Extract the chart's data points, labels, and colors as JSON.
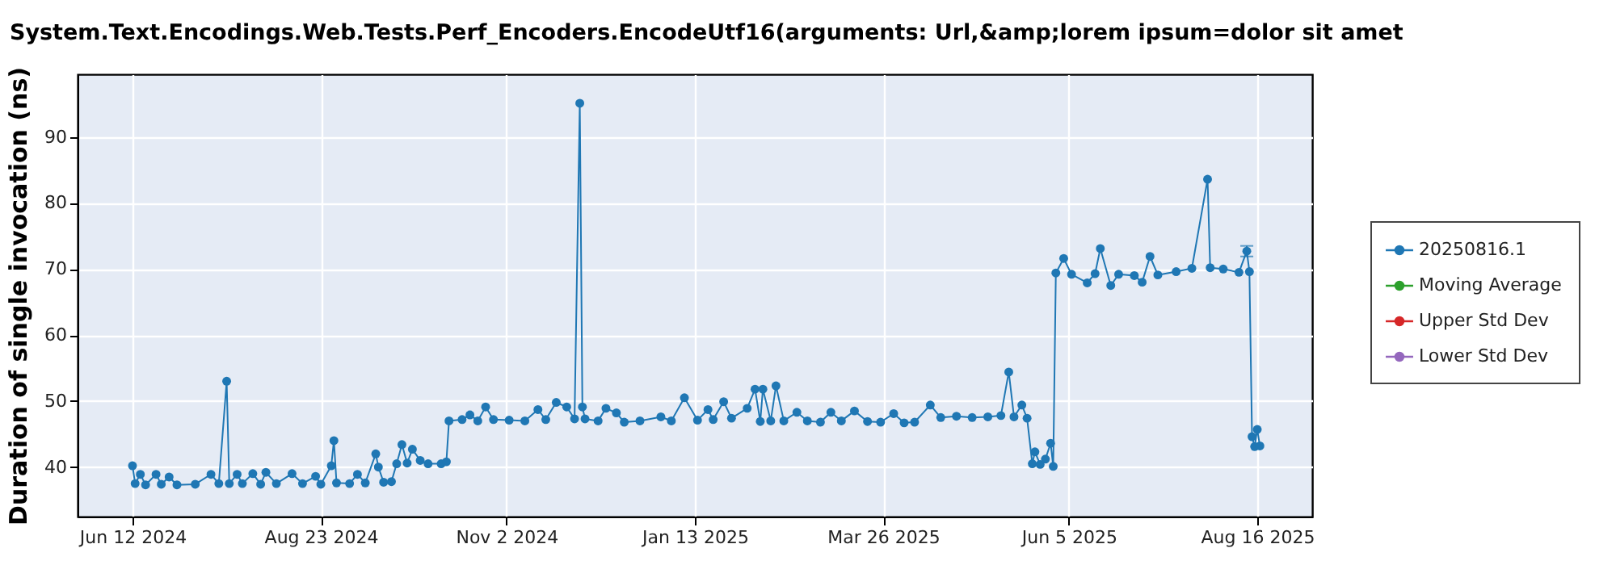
{
  "chart_data": {
    "type": "line",
    "title": "System.Text.Encodings.Web.Tests.Perf_Encoders.EncodeUtf16(arguments: Url,&amp;lorem ipsum=dolor sit amet",
    "ylabel": "Duration of single invocation (ns)",
    "x": [
      "2024-06-12",
      "2024-06-13",
      "2024-06-15",
      "2024-06-17",
      "2024-06-21",
      "2024-06-23",
      "2024-06-26",
      "2024-06-29",
      "2024-07-06",
      "2024-07-12",
      "2024-07-15",
      "2024-07-18",
      "2024-07-19",
      "2024-07-22",
      "2024-07-24",
      "2024-07-28",
      "2024-07-31",
      "2024-08-02",
      "2024-08-06",
      "2024-08-12",
      "2024-08-16",
      "2024-08-21",
      "2024-08-23",
      "2024-08-27",
      "2024-08-28",
      "2024-08-29",
      "2024-09-03",
      "2024-09-06",
      "2024-09-09",
      "2024-09-13",
      "2024-09-14",
      "2024-09-16",
      "2024-09-19",
      "2024-09-21",
      "2024-09-23",
      "2024-09-25",
      "2024-09-27",
      "2024-09-30",
      "2024-10-03",
      "2024-10-08",
      "2024-10-10",
      "2024-10-11",
      "2024-10-16",
      "2024-10-19",
      "2024-10-22",
      "2024-10-25",
      "2024-10-28",
      "2024-11-03",
      "2024-11-09",
      "2024-11-14",
      "2024-11-17",
      "2024-11-21",
      "2024-11-25",
      "2024-11-28",
      "2024-11-30",
      "2024-12-01",
      "2024-12-02",
      "2024-12-07",
      "2024-12-10",
      "2024-12-14",
      "2024-12-17",
      "2024-12-23",
      "2024-12-31",
      "2025-01-04",
      "2025-01-09",
      "2025-01-14",
      "2025-01-18",
      "2025-01-20",
      "2025-01-24",
      "2025-01-27",
      "2025-02-02",
      "2025-02-05",
      "2025-02-07",
      "2025-02-08",
      "2025-02-11",
      "2025-02-13",
      "2025-02-16",
      "2025-02-21",
      "2025-02-25",
      "2025-03-02",
      "2025-03-06",
      "2025-03-10",
      "2025-03-15",
      "2025-03-20",
      "2025-03-25",
      "2025-03-30",
      "2025-04-03",
      "2025-04-07",
      "2025-04-13",
      "2025-04-17",
      "2025-04-23",
      "2025-04-29",
      "2025-05-05",
      "2025-05-10",
      "2025-05-13",
      "2025-05-15",
      "2025-05-18",
      "2025-05-20",
      "2025-05-22",
      "2025-05-23",
      "2025-05-25",
      "2025-05-27",
      "2025-05-29",
      "2025-05-30",
      "2025-05-31",
      "2025-06-03",
      "2025-06-06",
      "2025-06-12",
      "2025-06-15",
      "2025-06-17",
      "2025-06-21",
      "2025-06-24",
      "2025-06-30",
      "2025-07-03",
      "2025-07-06",
      "2025-07-09",
      "2025-07-16",
      "2025-07-22",
      "2025-07-28",
      "2025-07-29",
      "2025-08-03",
      "2025-08-09",
      "2025-08-12",
      "2025-08-13",
      "2025-08-14",
      "2025-08-15",
      "2025-08-16",
      "2025-08-17"
    ],
    "series": [
      {
        "name": "20250816.1",
        "color": "#1f77b4",
        "values": [
          40.2,
          37.5,
          38.9,
          37.3,
          38.9,
          37.4,
          38.5,
          37.3,
          37.4,
          38.9,
          37.5,
          53.0,
          37.5,
          38.9,
          37.5,
          39.0,
          37.4,
          39.2,
          37.5,
          39.0,
          37.5,
          38.6,
          37.4,
          40.2,
          44.0,
          37.6,
          37.5,
          38.9,
          37.6,
          42.0,
          40.0,
          37.7,
          37.8,
          40.5,
          43.4,
          40.6,
          42.7,
          41.0,
          40.5,
          40.5,
          40.8,
          47.0,
          47.2,
          47.9,
          47.0,
          49.1,
          47.2,
          47.1,
          47.0,
          48.7,
          47.2,
          49.8,
          49.1,
          47.3,
          95.1,
          49.1,
          47.3,
          47.0,
          48.9,
          48.2,
          46.8,
          47.0,
          47.6,
          47.0,
          50.5,
          47.1,
          48.7,
          47.2,
          49.9,
          47.4,
          48.9,
          51.8,
          46.9,
          51.8,
          47.0,
          52.3,
          47.0,
          48.3,
          47.0,
          46.8,
          48.3,
          47.0,
          48.5,
          46.9,
          46.8,
          48.1,
          46.7,
          46.8,
          49.4,
          47.5,
          47.7,
          47.5,
          47.6,
          47.8,
          54.4,
          47.6,
          49.4,
          47.4,
          40.5,
          42.3,
          40.4,
          41.2,
          43.6,
          40.1,
          69.4,
          71.6,
          69.2,
          67.9,
          69.3,
          73.1,
          67.5,
          69.2,
          69.0,
          68.0,
          71.9,
          69.1,
          69.6,
          70.1,
          83.6,
          70.2,
          70.0,
          69.5,
          72.7,
          69.6,
          44.6,
          43.1,
          45.7,
          43.2
        ],
        "errors": [
          null,
          null,
          null,
          null,
          null,
          null,
          null,
          null,
          null,
          null,
          null,
          null,
          null,
          null,
          null,
          null,
          null,
          null,
          null,
          null,
          null,
          null,
          null,
          null,
          null,
          null,
          null,
          null,
          null,
          null,
          null,
          null,
          null,
          null,
          null,
          null,
          null,
          null,
          null,
          null,
          null,
          null,
          null,
          null,
          null,
          null,
          null,
          null,
          null,
          null,
          null,
          null,
          null,
          null,
          null,
          null,
          null,
          null,
          null,
          null,
          null,
          null,
          null,
          null,
          null,
          null,
          null,
          null,
          null,
          null,
          null,
          null,
          null,
          null,
          null,
          null,
          null,
          null,
          null,
          null,
          null,
          null,
          null,
          null,
          null,
          null,
          null,
          null,
          null,
          null,
          null,
          null,
          null,
          null,
          null,
          null,
          null,
          null,
          null,
          null,
          null,
          null,
          null,
          null,
          null,
          null,
          null,
          null,
          null,
          null,
          null,
          null,
          null,
          null,
          null,
          null,
          null,
          null,
          null,
          null,
          null,
          null,
          0.8,
          null,
          null,
          null,
          null,
          null
        ]
      },
      {
        "name": "Moving Average",
        "color": "#2ca02c",
        "values": [
          null,
          null,
          null,
          null,
          null,
          null,
          null,
          null,
          null,
          null,
          null,
          null,
          null,
          null,
          null,
          null,
          null,
          null,
          null,
          null,
          null,
          null,
          null,
          null,
          null,
          null,
          null,
          null,
          null,
          null,
          null,
          null,
          null,
          null,
          null,
          null,
          null,
          null,
          null,
          null,
          null,
          null,
          null,
          null,
          null,
          null,
          null,
          null,
          null,
          null,
          null,
          null,
          null,
          null,
          null,
          null,
          null,
          null,
          null,
          null,
          null,
          null,
          null,
          null,
          null,
          null,
          null,
          null,
          null,
          null,
          null,
          null,
          null,
          null,
          null,
          null,
          null,
          null,
          null,
          null,
          null,
          null,
          null,
          null,
          null,
          null,
          null,
          null,
          null,
          null,
          null,
          null,
          null,
          null,
          null,
          null,
          null,
          null,
          null,
          null,
          null,
          null,
          null,
          null,
          null,
          null,
          null,
          null,
          null,
          null,
          null,
          null,
          null,
          null,
          null,
          null,
          null,
          null,
          null,
          null,
          null,
          null,
          null,
          null,
          null,
          null,
          null,
          null
        ]
      },
      {
        "name": "Upper Std Dev",
        "color": "#d62728",
        "values": [
          null,
          null,
          null,
          null,
          null,
          null,
          null,
          null,
          null,
          null,
          null,
          null,
          null,
          null,
          null,
          null,
          null,
          null,
          null,
          null,
          null,
          null,
          null,
          null,
          null,
          null,
          null,
          null,
          null,
          null,
          null,
          null,
          null,
          null,
          null,
          null,
          null,
          null,
          null,
          null,
          null,
          null,
          null,
          null,
          null,
          null,
          null,
          null,
          null,
          null,
          null,
          null,
          null,
          null,
          null,
          null,
          null,
          null,
          null,
          null,
          null,
          null,
          null,
          null,
          null,
          null,
          null,
          null,
          null,
          null,
          null,
          null,
          null,
          null,
          null,
          null,
          null,
          null,
          null,
          null,
          null,
          null,
          null,
          null,
          null,
          null,
          null,
          null,
          null,
          null,
          null,
          null,
          null,
          null,
          null,
          null,
          null,
          null,
          null,
          null,
          null,
          null,
          null,
          null,
          null,
          null,
          null,
          null,
          null,
          null,
          null,
          null,
          null,
          null,
          null,
          null,
          null,
          null,
          null,
          null,
          null,
          null,
          null,
          null,
          null,
          null,
          null,
          null
        ]
      },
      {
        "name": "Lower Std Dev",
        "color": "#9467bd",
        "values": [
          null,
          null,
          null,
          null,
          null,
          null,
          null,
          null,
          null,
          null,
          null,
          null,
          null,
          null,
          null,
          null,
          null,
          null,
          null,
          null,
          null,
          null,
          null,
          null,
          null,
          null,
          null,
          null,
          null,
          null,
          null,
          null,
          null,
          null,
          null,
          null,
          null,
          null,
          null,
          null,
          null,
          null,
          null,
          null,
          null,
          null,
          null,
          null,
          null,
          null,
          null,
          null,
          null,
          null,
          null,
          null,
          null,
          null,
          null,
          null,
          null,
          null,
          null,
          null,
          null,
          null,
          null,
          null,
          null,
          null,
          null,
          null,
          null,
          null,
          null,
          null,
          null,
          null,
          null,
          null,
          null,
          null,
          null,
          null,
          null,
          null,
          null,
          null,
          null,
          null,
          null,
          null,
          null,
          null,
          null,
          null,
          null,
          null,
          null,
          null,
          null,
          null,
          null,
          null,
          null,
          null,
          null,
          null,
          null,
          null,
          null,
          null,
          null,
          null,
          null,
          null,
          null,
          null,
          null,
          null,
          null,
          null,
          null,
          null,
          null,
          null,
          null,
          null
        ]
      }
    ],
    "xlim": [
      "2024-05-22",
      "2025-09-06"
    ],
    "xticks": [
      {
        "value": "2024-06-12",
        "label": "Jun 12 2024"
      },
      {
        "value": "2024-08-23",
        "label": "Aug 23 2024"
      },
      {
        "value": "2024-11-02",
        "label": "Nov 2 2024"
      },
      {
        "value": "2025-01-13",
        "label": "Jan 13 2025"
      },
      {
        "value": "2025-03-26",
        "label": "Mar 26 2025"
      },
      {
        "value": "2025-06-05",
        "label": "Jun 5 2025"
      },
      {
        "value": "2025-08-16",
        "label": "Aug 16 2025"
      }
    ],
    "ylim": [
      32.5,
      99.5
    ],
    "yticks": [
      40,
      50,
      60,
      70,
      80,
      90
    ],
    "grid": true,
    "legend": "right",
    "marker": "circle",
    "line_style": "solid"
  }
}
